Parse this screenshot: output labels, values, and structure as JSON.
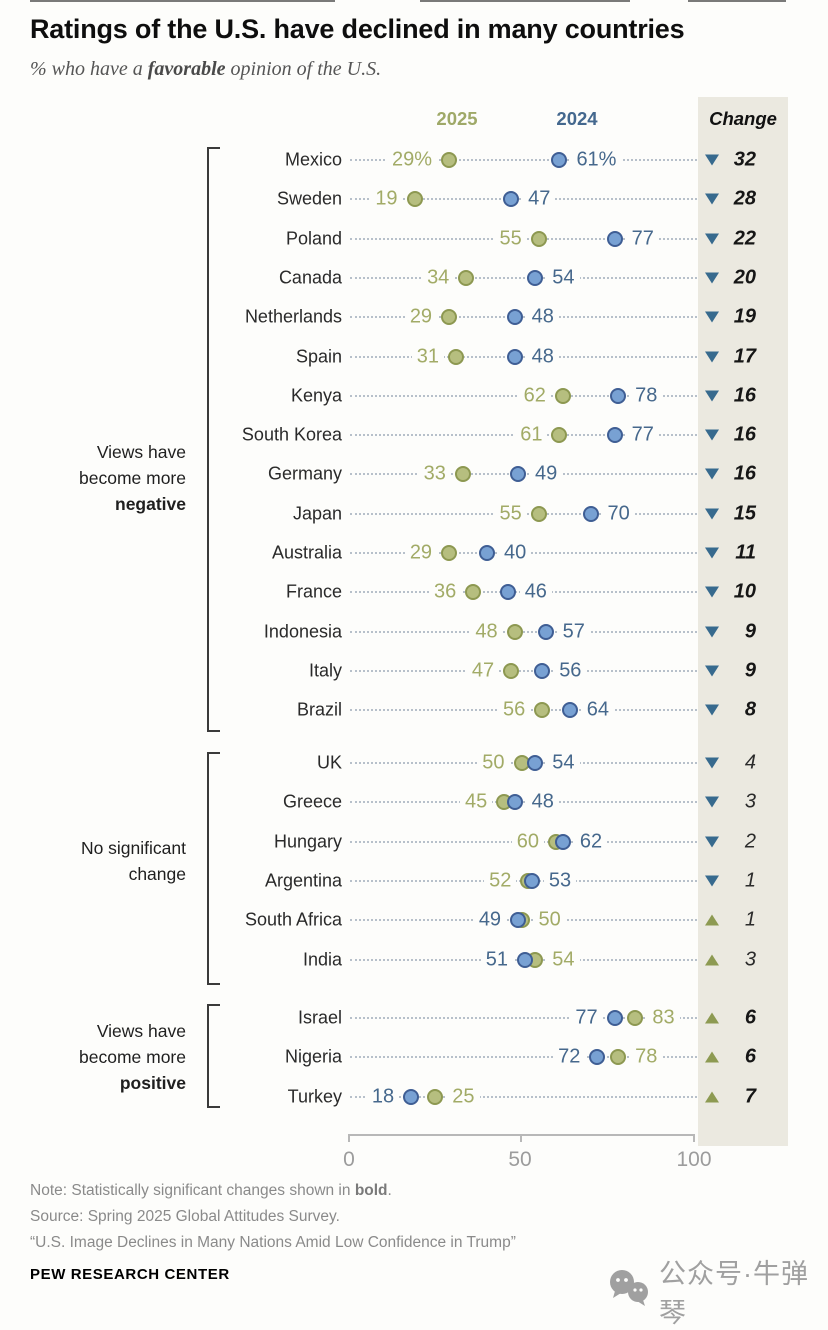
{
  "page": {
    "title": "Ratings of the U.S. have declined in many countries",
    "subtitle": {
      "prefix": "% who have a ",
      "bold": "favorable",
      "suffix": " opinion of the U.S."
    },
    "note": {
      "prefix": "Note: Statistically significant changes shown in ",
      "bold": "bold",
      "suffix": "."
    },
    "source": "Source: Spring 2025 Global Attitudes Survey.",
    "quote": "“U.S. Image Declines in Many Nations Amid Low Confidence in Trump”",
    "branding": "PEW RESEARCH CENTER",
    "watermark_text": "公众号·牛弹琴",
    "watermark_icon": "wechat-bubbles-icon"
  },
  "chart_data": {
    "type": "scatter",
    "variant": "paired-dot-plot",
    "title": "Ratings of the U.S. have declined in many countries",
    "subtitle": "% who have a favorable opinion of the U.S.",
    "col_headers": {
      "y2025": "2025",
      "y2024": "2024",
      "change": "Change"
    },
    "legend": [
      {
        "name": "2025",
        "color": "#b6be7f"
      },
      {
        "name": "2024",
        "color": "#78a1d3"
      }
    ],
    "axis": {
      "min": 0,
      "max": 100,
      "ticks": [
        0,
        50,
        100
      ],
      "tick_labels": [
        "0",
        "50",
        "100"
      ],
      "grid": false
    },
    "colors": {
      "dot_2025_fill": "#b6be7f",
      "dot_2025_stroke": "#8d9851",
      "text_2025": "#a2ab67",
      "dot_2024_fill": "#78a1d3",
      "dot_2024_stroke": "#3f5e94",
      "text_2024": "#46688c",
      "triangle_down": "#376a8e",
      "triangle_up": "#8d9a52",
      "change_strip_bg": "#ebe9e0",
      "leader_dots": "#b7c0ca"
    },
    "groups": [
      {
        "label_lines": [
          "Views have",
          "become more",
          "negative"
        ],
        "bold_last_line": true,
        "significant": true,
        "rows": [
          {
            "country": "Mexico",
            "v2025": 29,
            "v2024": 61,
            "suffix": "%",
            "change": 32,
            "dir": "down"
          },
          {
            "country": "Sweden",
            "v2025": 19,
            "v2024": 47,
            "suffix": "",
            "change": 28,
            "dir": "down"
          },
          {
            "country": "Poland",
            "v2025": 55,
            "v2024": 77,
            "suffix": "",
            "change": 22,
            "dir": "down"
          },
          {
            "country": "Canada",
            "v2025": 34,
            "v2024": 54,
            "suffix": "",
            "change": 20,
            "dir": "down"
          },
          {
            "country": "Netherlands",
            "v2025": 29,
            "v2024": 48,
            "suffix": "",
            "change": 19,
            "dir": "down"
          },
          {
            "country": "Spain",
            "v2025": 31,
            "v2024": 48,
            "suffix": "",
            "change": 17,
            "dir": "down"
          },
          {
            "country": "Kenya",
            "v2025": 62,
            "v2024": 78,
            "suffix": "",
            "change": 16,
            "dir": "down"
          },
          {
            "country": "South Korea",
            "v2025": 61,
            "v2024": 77,
            "suffix": "",
            "change": 16,
            "dir": "down"
          },
          {
            "country": "Germany",
            "v2025": 33,
            "v2024": 49,
            "suffix": "",
            "change": 16,
            "dir": "down"
          },
          {
            "country": "Japan",
            "v2025": 55,
            "v2024": 70,
            "suffix": "",
            "change": 15,
            "dir": "down"
          },
          {
            "country": "Australia",
            "v2025": 29,
            "v2024": 40,
            "suffix": "",
            "change": 11,
            "dir": "down"
          },
          {
            "country": "France",
            "v2025": 36,
            "v2024": 46,
            "suffix": "",
            "change": 10,
            "dir": "down"
          },
          {
            "country": "Indonesia",
            "v2025": 48,
            "v2024": 57,
            "suffix": "",
            "change": 9,
            "dir": "down"
          },
          {
            "country": "Italy",
            "v2025": 47,
            "v2024": 56,
            "suffix": "",
            "change": 9,
            "dir": "down"
          },
          {
            "country": "Brazil",
            "v2025": 56,
            "v2024": 64,
            "suffix": "",
            "change": 8,
            "dir": "down"
          }
        ]
      },
      {
        "label_lines": [
          "No significant",
          "change"
        ],
        "bold_last_line": false,
        "significant": false,
        "rows": [
          {
            "country": "UK",
            "v2025": 50,
            "v2024": 54,
            "suffix": "",
            "change": 4,
            "dir": "down"
          },
          {
            "country": "Greece",
            "v2025": 45,
            "v2024": 48,
            "suffix": "",
            "change": 3,
            "dir": "down"
          },
          {
            "country": "Hungary",
            "v2025": 60,
            "v2024": 62,
            "suffix": "",
            "change": 2,
            "dir": "down"
          },
          {
            "country": "Argentina",
            "v2025": 52,
            "v2024": 53,
            "suffix": "",
            "change": 1,
            "dir": "down"
          },
          {
            "country": "South Africa",
            "v2025": 50,
            "v2024": 49,
            "suffix": "",
            "change": 1,
            "dir": "up"
          },
          {
            "country": "India",
            "v2025": 54,
            "v2024": 51,
            "suffix": "",
            "change": 3,
            "dir": "up"
          }
        ]
      },
      {
        "label_lines": [
          "Views have",
          "become more",
          "positive"
        ],
        "bold_last_line": true,
        "significant": true,
        "rows": [
          {
            "country": "Israel",
            "v2025": 83,
            "v2024": 77,
            "suffix": "",
            "change": 6,
            "dir": "up"
          },
          {
            "country": "Nigeria",
            "v2025": 78,
            "v2024": 72,
            "suffix": "",
            "change": 6,
            "dir": "up"
          },
          {
            "country": "Turkey",
            "v2025": 25,
            "v2024": 18,
            "suffix": "",
            "change": 7,
            "dir": "up"
          }
        ]
      }
    ]
  }
}
